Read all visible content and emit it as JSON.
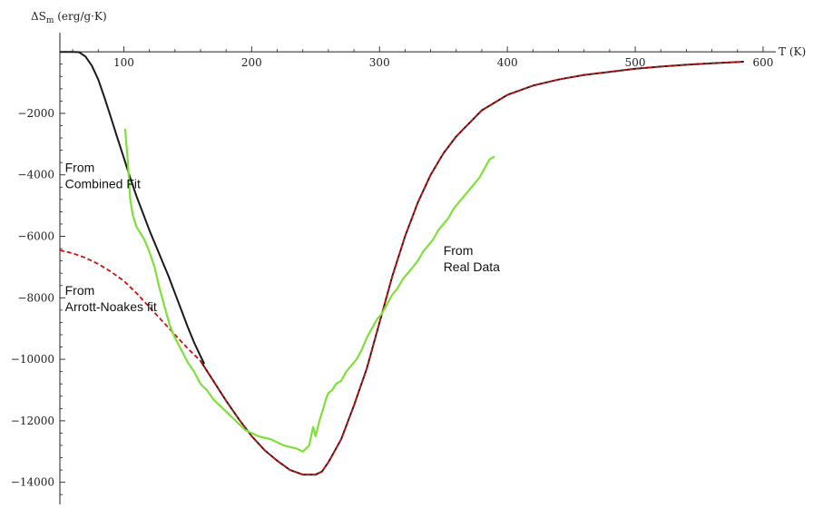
{
  "chart_data": {
    "type": "line",
    "title": "",
    "ylabel": "ΔS",
    "ylabel_sub": "m",
    "ylabel_unit": " (erg/g·K)",
    "xlabel": "T (K)",
    "xlim": [
      50,
      605
    ],
    "ylim": [
      -14600,
      300
    ],
    "x_ticks": [
      100,
      200,
      300,
      400,
      500,
      600
    ],
    "x_tick_labels": [
      "100",
      "200",
      "300",
      "400",
      "500",
      "600"
    ],
    "y_ticks": [
      -2000,
      -4000,
      -6000,
      -8000,
      -10000,
      -12000,
      -14000
    ],
    "y_tick_labels": [
      "-2000",
      "-4000",
      "-6000",
      "-8000",
      "-10000",
      "-12000",
      "-14000"
    ],
    "grid": false,
    "series": [
      {
        "color": "#1a1a1a",
        "style": "solid",
        "x": [
          50,
          55,
          60,
          65,
          70,
          75,
          80,
          85,
          90,
          95,
          100,
          105,
          110,
          115,
          120,
          125,
          130,
          135,
          140,
          145,
          150,
          155,
          160,
          163
        ],
        "y": [
          0,
          0,
          0,
          -10,
          -150,
          -450,
          -900,
          -1500,
          -2150,
          -2800,
          -3450,
          -4100,
          -4700,
          -5250,
          -5800,
          -6300,
          -6800,
          -7300,
          -7850,
          -8400,
          -8950,
          -9450,
          -9900,
          -10150
        ]
      },
      {
        "color": "#cc1010",
        "style": "dashed",
        "x": [
          50,
          60,
          70,
          80,
          90,
          100,
          110,
          120,
          130,
          140,
          150,
          160
        ],
        "y": [
          -6450,
          -6550,
          -6700,
          -6900,
          -7150,
          -7450,
          -7850,
          -8300,
          -8750,
          -9200,
          -9650,
          -10050
        ]
      },
      {
        "color": "#1a1a1a",
        "overlay_color": "#cc1010",
        "style": "solid",
        "x": [
          160,
          170,
          180,
          190,
          200,
          210,
          220,
          230,
          240,
          250,
          255,
          260,
          270,
          280,
          290,
          300,
          310,
          320,
          330,
          340,
          350,
          360,
          380,
          400,
          420,
          440,
          460,
          480,
          500,
          520,
          540,
          560,
          580,
          585
        ],
        "y": [
          -10050,
          -10700,
          -11350,
          -11950,
          -12500,
          -12950,
          -13300,
          -13600,
          -13750,
          -13750,
          -13650,
          -13350,
          -12600,
          -11500,
          -10300,
          -8800,
          -7300,
          -6000,
          -4900,
          -4000,
          -3300,
          -2750,
          -1900,
          -1400,
          -1100,
          -900,
          -750,
          -650,
          -550,
          -480,
          -420,
          -370,
          -330,
          -320
        ]
      },
      {
        "color": "#7fe03a",
        "style": "solid",
        "x": [
          101,
          103,
          105,
          107,
          110,
          113,
          116,
          120,
          124,
          128,
          132,
          136,
          140,
          145,
          150,
          155,
          160,
          165,
          170,
          175,
          180,
          185,
          190,
          195,
          200,
          205,
          210,
          215,
          220,
          225,
          230,
          235,
          240,
          245,
          248,
          250,
          253,
          256,
          258,
          260,
          263,
          266,
          270,
          274,
          278,
          282,
          286,
          290,
          294,
          298,
          302,
          306,
          310,
          314,
          318,
          322,
          326,
          330,
          334,
          338,
          342,
          346,
          350,
          354,
          358,
          362,
          366,
          370,
          374,
          378,
          382,
          386,
          390
        ],
        "y": [
          -2500,
          -3500,
          -4800,
          -5300,
          -5700,
          -5900,
          -6100,
          -6500,
          -7000,
          -7700,
          -8300,
          -8900,
          -9300,
          -9700,
          -10100,
          -10400,
          -10800,
          -11000,
          -11300,
          -11500,
          -11700,
          -11900,
          -12100,
          -12300,
          -12400,
          -12500,
          -12550,
          -12600,
          -12700,
          -12800,
          -12850,
          -12900,
          -13000,
          -12800,
          -12200,
          -12500,
          -12000,
          -11600,
          -11300,
          -11100,
          -11000,
          -10800,
          -10700,
          -10400,
          -10200,
          -10000,
          -9700,
          -9300,
          -9000,
          -8700,
          -8500,
          -8200,
          -7900,
          -7700,
          -7400,
          -7200,
          -7000,
          -6800,
          -6500,
          -6300,
          -6100,
          -5800,
          -5600,
          -5400,
          -5100,
          -4900,
          -4700,
          -4500,
          -4300,
          -4100,
          -3800,
          -3500,
          -3400
        ]
      }
    ],
    "annotations": [
      {
        "line1": "From",
        "line2": "Combined Fit",
        "x": 54,
        "y": -3900
      },
      {
        "line1": "From",
        "line2": "Arrott-Noakes fit",
        "x": 54,
        "y": -7900
      },
      {
        "line1": "From",
        "line2": "Real Data",
        "x": 350,
        "y": -6600
      }
    ]
  }
}
